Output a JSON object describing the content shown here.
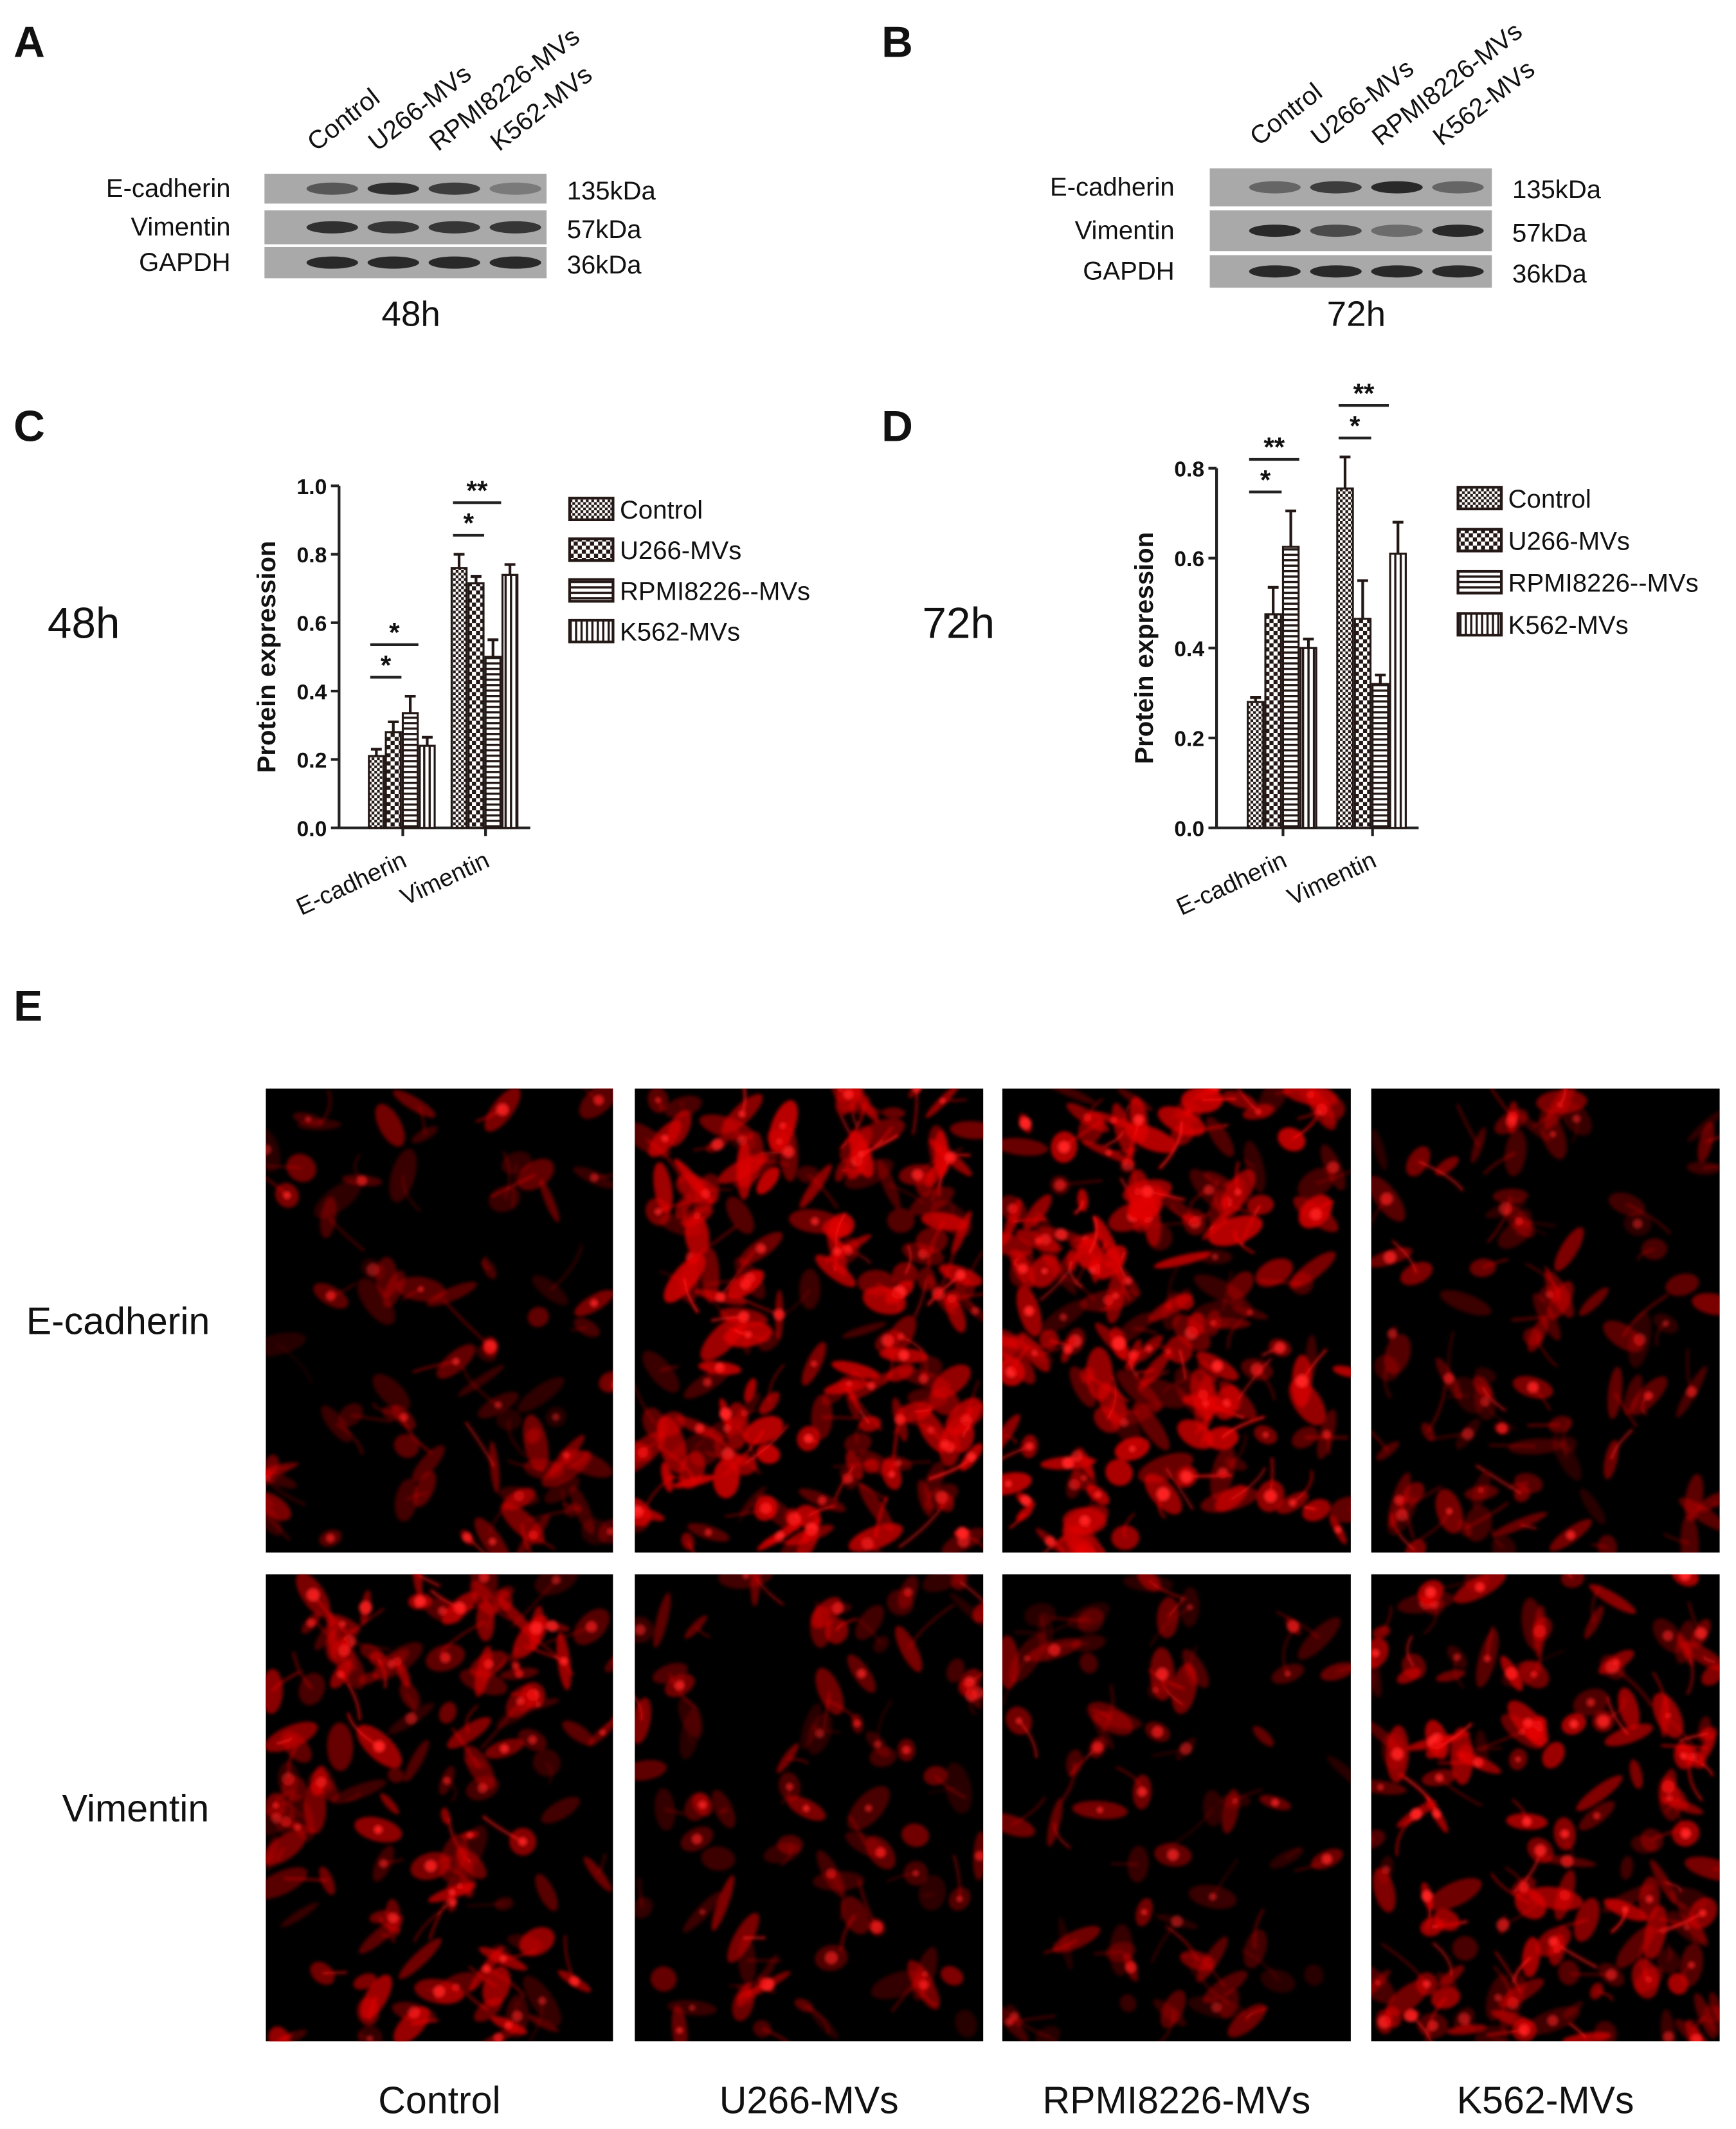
{
  "blots": [
    {
      "label": "A",
      "lanes": [
        "Control",
        "U266-MVs",
        "RPMI8226-MVs",
        "K562-MVs"
      ],
      "rows": [
        {
          "protein": "E-cadherin",
          "size": "135kDa"
        },
        {
          "protein": "Vimentin",
          "size": "57kDa"
        },
        {
          "protein": "GAPDH",
          "size": "36kDa"
        }
      ],
      "time": "48h"
    },
    {
      "label": "B",
      "lanes": [
        "Control",
        "U266-MVs",
        "RPMI8226-MVs",
        "K562-MVs"
      ],
      "rows": [
        {
          "protein": "E-cadherin",
          "size": "135kDa"
        },
        {
          "protein": "Vimentin",
          "size": "57kDa"
        },
        {
          "protein": "GAPDH",
          "size": "36kDa"
        }
      ],
      "time": "72h"
    }
  ],
  "chart_data": [
    {
      "type": "bar",
      "label": "C",
      "side_label": "48h",
      "y_label": "Protein expression",
      "categories": [
        "E-cadherin",
        "Vimentin"
      ],
      "series": [
        {
          "name": "Control",
          "color": "#231815",
          "values": [
            0.21,
            0.76
          ],
          "errors": [
            0.02,
            0.04
          ]
        },
        {
          "name": "U266-MVs",
          "color": "#231815",
          "values": [
            0.28,
            0.715
          ],
          "errors": [
            0.03,
            0.02
          ]
        },
        {
          "name": "RPMI8226--MVs",
          "color": "#231815",
          "values": [
            0.335,
            0.5
          ],
          "errors": [
            0.05,
            0.05
          ]
        },
        {
          "name": "K562-MVs",
          "color": "#231815",
          "values": [
            0.24,
            0.74
          ],
          "errors": [
            0.025,
            0.03
          ]
        }
      ],
      "ylim": [
        0,
        1
      ],
      "yticks": [
        {
          "value": 0,
          "label": "0.0"
        },
        0.2,
        0.4,
        0.6,
        0.8,
        {
          "value": 1,
          "label": "1.0"
        }
      ],
      "annotations": [
        {
          "text": "*",
          "category": "E-cadherin",
          "between": [
            "Control",
            "U266-MVs"
          ]
        },
        {
          "text": "*",
          "category": "E-cadherin",
          "between": [
            "Control",
            "RPMI8226--MVs"
          ]
        },
        {
          "text": "*",
          "category": "Vimentin",
          "between": [
            "Control",
            "U266-MVs"
          ]
        },
        {
          "text": "**",
          "category": "Vimentin",
          "between": [
            "Control",
            "RPMI8226--MVs"
          ]
        }
      ]
    },
    {
      "type": "bar",
      "label": "D",
      "side_label": "72h",
      "y_label": "Protein expression",
      "categories": [
        "E-cadherin",
        "Vimentin"
      ],
      "series": [
        {
          "name": "Control",
          "color": "#231815",
          "values": [
            0.28,
            0.755
          ],
          "errors": [
            0.01,
            0.07
          ]
        },
        {
          "name": "U266-MVs",
          "color": "#231815",
          "values": [
            0.475,
            0.465
          ],
          "errors": [
            0.06,
            0.085
          ]
        },
        {
          "name": "RPMI8226--MVs",
          "color": "#231815",
          "values": [
            0.625,
            0.32
          ],
          "errors": [
            0.08,
            0.02
          ]
        },
        {
          "name": "K562-MVs",
          "color": "#231815",
          "values": [
            0.4,
            0.61
          ],
          "errors": [
            0.02,
            0.07
          ]
        }
      ],
      "ylim": [
        0,
        0.8
      ],
      "yticks": [
        {
          "value": 0,
          "label": "0.0"
        },
        0.2,
        0.4,
        0.6,
        0.8
      ],
      "annotations": [
        {
          "text": "*",
          "category": "E-cadherin",
          "between": [
            "Control",
            "U266-MVs"
          ]
        },
        {
          "text": "**",
          "category": "E-cadherin",
          "between": [
            "Control",
            "RPMI8226--MVs"
          ]
        },
        {
          "text": "*",
          "category": "Vimentin",
          "between": [
            "Control",
            "U266-MVs"
          ]
        },
        {
          "text": "**",
          "category": "Vimentin",
          "between": [
            "Control",
            "RPMI8226--MVs"
          ]
        }
      ]
    }
  ],
  "images": {
    "label": "E",
    "rows": [
      "E-cadherin",
      "Vimentin"
    ],
    "columns": [
      "Control",
      "U266-MVs",
      "RPMI8226-MVs",
      "K562-MVs"
    ]
  }
}
